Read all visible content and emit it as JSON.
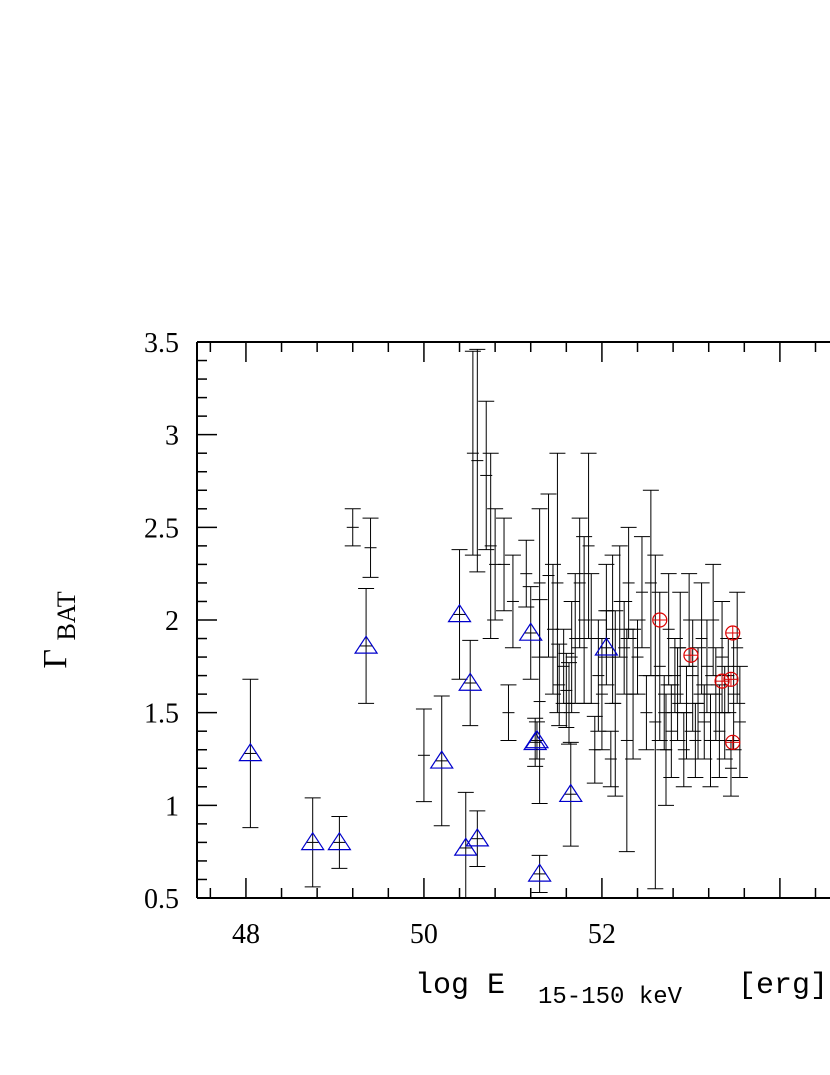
{
  "chart_data": {
    "type": "scatter",
    "title": "",
    "xlabel": {
      "main": "log E",
      "sub": "15-150 keV",
      "unit": "[erg]"
    },
    "ylabel": {
      "main": "Γ",
      "sub": "BAT"
    },
    "xlim": [
      47.45,
      54.9
    ],
    "ylim": [
      0.5,
      3.5
    ],
    "x_ticks": [
      48,
      50,
      52
    ],
    "x_tick_labels": [
      "48",
      "50",
      "52"
    ],
    "y_ticks": [
      0.5,
      1,
      1.5,
      2,
      2.5,
      3,
      3.5
    ],
    "y_tick_labels": [
      "0.5",
      "1",
      "1.5",
      "2",
      "2.5",
      "3",
      "3.5"
    ],
    "grid": false,
    "colors": {
      "black": "#000000",
      "blue": "#0000cc",
      "red": "#dd0000"
    },
    "series": [
      {
        "marker": "cross",
        "color": "#000000",
        "points": [
          [
            49.2,
            2.5,
            0.1
          ],
          [
            49.4,
            2.39,
            0.16
          ],
          [
            50.0,
            1.27,
            0.25
          ],
          [
            50.7,
            2.78,
            0.4
          ],
          [
            50.55,
            2.9,
            0.55
          ],
          [
            50.6,
            2.86,
            0.6
          ],
          [
            50.75,
            2.4,
            0.5
          ],
          [
            50.8,
            2.3,
            0.3
          ],
          [
            50.9,
            2.3,
            0.25
          ],
          [
            51.0,
            2.1,
            0.25
          ],
          [
            50.95,
            1.5,
            0.15
          ],
          [
            51.15,
            2.25,
            0.18
          ],
          [
            51.3,
            1.56,
            0.55
          ],
          [
            51.3,
            2.2,
            0.4
          ],
          [
            51.4,
            2.24,
            0.44
          ],
          [
            51.45,
            1.95,
            0.35
          ],
          [
            51.5,
            2.2,
            0.7
          ],
          [
            51.52,
            1.65,
            0.22
          ],
          [
            51.57,
            1.75,
            0.2
          ],
          [
            51.6,
            1.62,
            0.2
          ],
          [
            51.63,
            1.55,
            0.22
          ],
          [
            51.66,
            1.8,
            0.3
          ],
          [
            51.7,
            1.9,
            0.35
          ],
          [
            51.75,
            2.2,
            0.35
          ],
          [
            51.8,
            2.0,
            0.45
          ],
          [
            51.85,
            2.4,
            0.5
          ],
          [
            51.88,
            1.9,
            0.35
          ],
          [
            51.92,
            1.3,
            0.18
          ],
          [
            51.96,
            1.7,
            0.3
          ],
          [
            52.0,
            1.6,
            0.3
          ],
          [
            52.05,
            2.05,
            0.25
          ],
          [
            52.1,
            1.25,
            0.15
          ],
          [
            52.12,
            1.95,
            0.4
          ],
          [
            52.15,
            1.55,
            0.5
          ],
          [
            52.2,
            2.1,
            0.3
          ],
          [
            52.25,
            1.85,
            0.25
          ],
          [
            52.28,
            1.35,
            0.6
          ],
          [
            52.3,
            2.2,
            0.3
          ],
          [
            52.35,
            1.6,
            0.35
          ],
          [
            52.4,
            1.8,
            0.2
          ],
          [
            52.45,
            2.15,
            0.3
          ],
          [
            52.5,
            1.5,
            0.2
          ],
          [
            52.55,
            2.2,
            0.5
          ],
          [
            52.6,
            1.45,
            0.9
          ],
          [
            52.65,
            1.75,
            0.4
          ],
          [
            52.7,
            1.5,
            0.2
          ],
          [
            52.72,
            1.3,
            0.3
          ],
          [
            52.75,
            1.95,
            0.3
          ],
          [
            52.78,
            1.4,
            0.25
          ],
          [
            52.82,
            1.7,
            0.2
          ],
          [
            52.85,
            1.6,
            0.25
          ],
          [
            52.88,
            1.85,
            0.3
          ],
          [
            52.92,
            1.3,
            0.2
          ],
          [
            52.95,
            1.5,
            0.25
          ],
          [
            52.98,
            2.0,
            0.25
          ],
          [
            53.02,
            1.7,
            0.3
          ],
          [
            53.05,
            1.35,
            0.2
          ],
          [
            53.08,
            1.55,
            0.3
          ],
          [
            53.12,
            1.9,
            0.3
          ],
          [
            53.15,
            1.45,
            0.2
          ],
          [
            53.18,
            1.75,
            0.25
          ],
          [
            53.22,
            1.35,
            0.25
          ],
          [
            53.25,
            2.0,
            0.3
          ],
          [
            53.28,
            1.6,
            0.25
          ],
          [
            53.32,
            1.4,
            0.25
          ],
          [
            53.35,
            1.8,
            0.3
          ],
          [
            53.38,
            1.5,
            0.25
          ],
          [
            53.42,
            1.7,
            0.2
          ],
          [
            53.45,
            1.2,
            0.15
          ],
          [
            53.48,
            1.6,
            0.3
          ],
          [
            53.52,
            1.85,
            0.3
          ],
          [
            53.55,
            1.45,
            0.3
          ]
        ]
      },
      {
        "marker": "triangle",
        "color": "#0000cc",
        "points": [
          [
            48.05,
            1.28,
            0.4
          ],
          [
            48.75,
            0.8,
            0.24
          ],
          [
            49.05,
            0.8,
            0.14
          ],
          [
            49.35,
            1.86,
            0.31
          ],
          [
            50.2,
            1.24,
            0.35
          ],
          [
            50.4,
            2.03,
            0.35
          ],
          [
            50.47,
            0.77,
            0.3
          ],
          [
            50.52,
            1.66,
            0.23
          ],
          [
            50.6,
            0.82,
            0.15
          ],
          [
            51.2,
            1.93,
            0.25
          ],
          [
            51.25,
            1.34,
            0.13
          ],
          [
            51.27,
            1.35,
            0.1
          ],
          [
            51.3,
            0.63,
            0.1
          ],
          [
            51.65,
            1.06,
            0.28
          ],
          [
            52.05,
            1.85,
            0.2
          ]
        ]
      },
      {
        "marker": "circle",
        "color": "#dd0000",
        "points": [
          [
            52.65,
            2.0,
            0.0
          ],
          [
            53.0,
            1.81,
            0.0
          ],
          [
            53.35,
            1.67,
            0.0
          ],
          [
            53.45,
            1.68,
            0.0
          ],
          [
            53.47,
            1.34,
            0.0
          ],
          [
            53.47,
            1.93,
            0.0
          ]
        ]
      }
    ]
  }
}
